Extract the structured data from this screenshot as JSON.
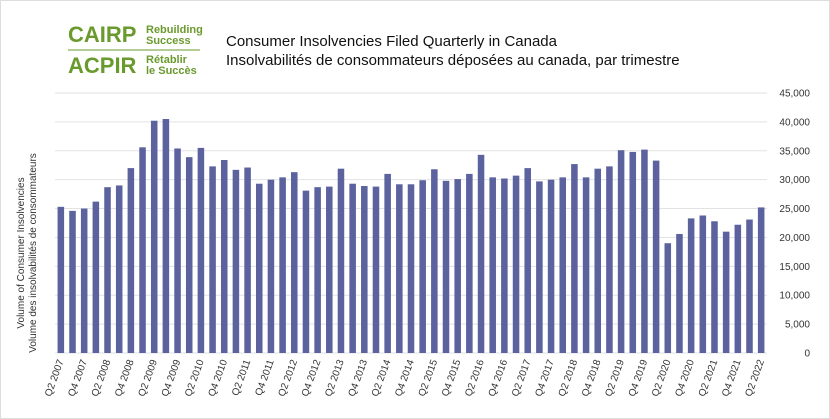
{
  "logo": {
    "name_en": "CAIRP",
    "tagline_en_1": "Rebuilding",
    "tagline_en_2": "Success",
    "name_fr": "ACPIR",
    "tagline_fr_1": "Rétablir",
    "tagline_fr_2": "le Succès"
  },
  "chart_data": {
    "type": "bar",
    "title": "Consumer Insolvencies Filed Quarterly in Canada",
    "subtitle": "Insolvabilités de consommateurs déposées au canada, par trimestre",
    "y_label": "Volume of Consumer Insolvencies",
    "y_label_fr": "Volume des insolvabilités de consommateurs",
    "color": "#5b629e",
    "categories": [
      "Q2 2007",
      null,
      "Q4 2007",
      null,
      "Q2 2008",
      null,
      "Q4 2008",
      null,
      "Q2 2009",
      null,
      "Q4 2009",
      null,
      "Q2 2010",
      null,
      "Q4 2010",
      null,
      "Q2 2011",
      null,
      "Q4 2011",
      null,
      "Q2 2012",
      null,
      "Q4 2012",
      null,
      "Q2 2013",
      null,
      "Q4 2013",
      null,
      "Q2 2014",
      null,
      "Q4 2014",
      null,
      "Q2 2015",
      null,
      "Q4 2015",
      null,
      "Q2 2016",
      null,
      "Q4 2016",
      null,
      "Q2 2017",
      null,
      "Q4 2017",
      null,
      "Q2 2018",
      null,
      "Q4 2018",
      null,
      "Q2 2019",
      null,
      "Q4 2019",
      null,
      "Q2 2020",
      null,
      "Q4 2020",
      null,
      "Q2 2021",
      null,
      "Q4 2021",
      null,
      "Q2 2022"
    ],
    "values": [
      25300,
      24600,
      25000,
      26200,
      28700,
      29000,
      32000,
      35600,
      40200,
      40500,
      35400,
      33900,
      35500,
      32300,
      33400,
      31700,
      32100,
      29300,
      30000,
      30400,
      31300,
      28100,
      28700,
      28800,
      31900,
      29300,
      28900,
      28800,
      31000,
      29200,
      29200,
      29900,
      31800,
      29800,
      30100,
      31000,
      34300,
      30400,
      30200,
      30700,
      32000,
      29700,
      30000,
      30400,
      32700,
      30400,
      31900,
      32300,
      35100,
      34800,
      35200,
      33300,
      19000,
      20600,
      23300,
      23800,
      22800,
      21000,
      22200,
      23100,
      25200
    ],
    "ylim": [
      0,
      45000
    ],
    "yticks": [
      0,
      {
        "value": 5000,
        "label": "5,000"
      },
      {
        "value": 10000,
        "label": "10,000"
      },
      {
        "value": 15000,
        "label": "15,000"
      },
      {
        "value": 20000,
        "label": "20,000"
      },
      {
        "value": 25000,
        "label": "25,000"
      },
      {
        "value": 30000,
        "label": "30,000"
      },
      {
        "value": 35000,
        "label": "35,000"
      },
      {
        "value": 40000,
        "label": "40,000"
      },
      {
        "value": 45000,
        "label": "45,000"
      }
    ],
    "grid": true
  }
}
